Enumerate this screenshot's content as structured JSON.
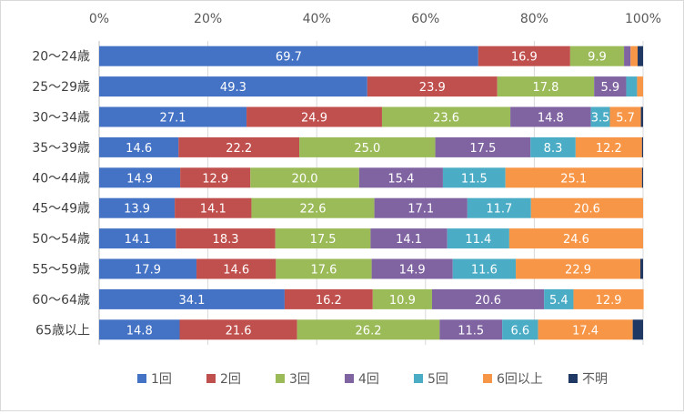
{
  "chart_data": {
    "type": "bar",
    "orientation": "horizontal",
    "stacked": "percent",
    "categories": [
      "20～24歳",
      "25～29歳",
      "30～34歳",
      "35～39歳",
      "40～44歳",
      "45～49歳",
      "50～54歳",
      "55～59歳",
      "60～64歳",
      "65歳以上"
    ],
    "xlim": [
      0,
      100
    ],
    "x_ticks": [
      "0%",
      "20%",
      "40%",
      "60%",
      "80%",
      "100%"
    ],
    "x_axis_position": "top",
    "grid": true,
    "legend_position": "bottom",
    "title": "",
    "xlabel": "",
    "ylabel": "",
    "series": [
      {
        "name": "1回",
        "color": "#4472C4",
        "values": [
          69.7,
          49.3,
          27.1,
          14.6,
          14.9,
          13.9,
          14.1,
          17.9,
          34.1,
          14.8
        ]
      },
      {
        "name": "2回",
        "color": "#C0504D",
        "values": [
          16.9,
          23.9,
          24.9,
          22.2,
          12.9,
          14.1,
          18.3,
          14.6,
          16.2,
          21.6
        ]
      },
      {
        "name": "3回",
        "color": "#9BBB59",
        "values": [
          9.9,
          17.8,
          23.6,
          25.0,
          20.0,
          22.6,
          17.5,
          17.6,
          10.9,
          26.2
        ]
      },
      {
        "name": "4回",
        "color": "#8064A2",
        "values": [
          1.2,
          5.9,
          14.8,
          17.5,
          15.4,
          17.1,
          14.1,
          14.9,
          20.6,
          11.5
        ]
      },
      {
        "name": "5回",
        "color": "#4BACC6",
        "values": [
          0.0,
          2.0,
          3.5,
          8.3,
          11.5,
          11.7,
          11.4,
          11.6,
          5.4,
          6.6
        ]
      },
      {
        "name": "6回以上",
        "color": "#F79646",
        "values": [
          1.3,
          1.1,
          5.7,
          12.2,
          25.1,
          20.6,
          24.6,
          22.9,
          12.9,
          17.4
        ]
      },
      {
        "name": "不明",
        "color": "#1F3864",
        "values": [
          1.0,
          0.0,
          0.4,
          0.2,
          0.2,
          0.0,
          0.0,
          0.5,
          0.0,
          1.9
        ]
      }
    ],
    "labels": [
      [
        "69.7",
        "16.9",
        "9.9",
        "",
        "",
        "",
        ""
      ],
      [
        "49.3",
        "23.9",
        "17.8",
        "5.9",
        "",
        "",
        ""
      ],
      [
        "27.1",
        "24.9",
        "23.6",
        "14.8",
        "3.5",
        "5.7",
        ""
      ],
      [
        "14.6",
        "22.2",
        "25.0",
        "17.5",
        "8.3",
        "12.2",
        ""
      ],
      [
        "14.9",
        "12.9",
        "20.0",
        "15.4",
        "11.5",
        "25.1",
        ""
      ],
      [
        "13.9",
        "14.1",
        "22.6",
        "17.1",
        "11.7",
        "20.6",
        ""
      ],
      [
        "14.1",
        "18.3",
        "17.5",
        "14.1",
        "11.4",
        "24.6",
        ""
      ],
      [
        "17.9",
        "14.6",
        "17.6",
        "14.9",
        "11.6",
        "22.9",
        ""
      ],
      [
        "34.1",
        "16.2",
        "10.9",
        "20.6",
        "5.4",
        "12.9",
        ""
      ],
      [
        "14.8",
        "21.6",
        "26.2",
        "11.5",
        "6.6",
        "17.4",
        ""
      ]
    ]
  }
}
